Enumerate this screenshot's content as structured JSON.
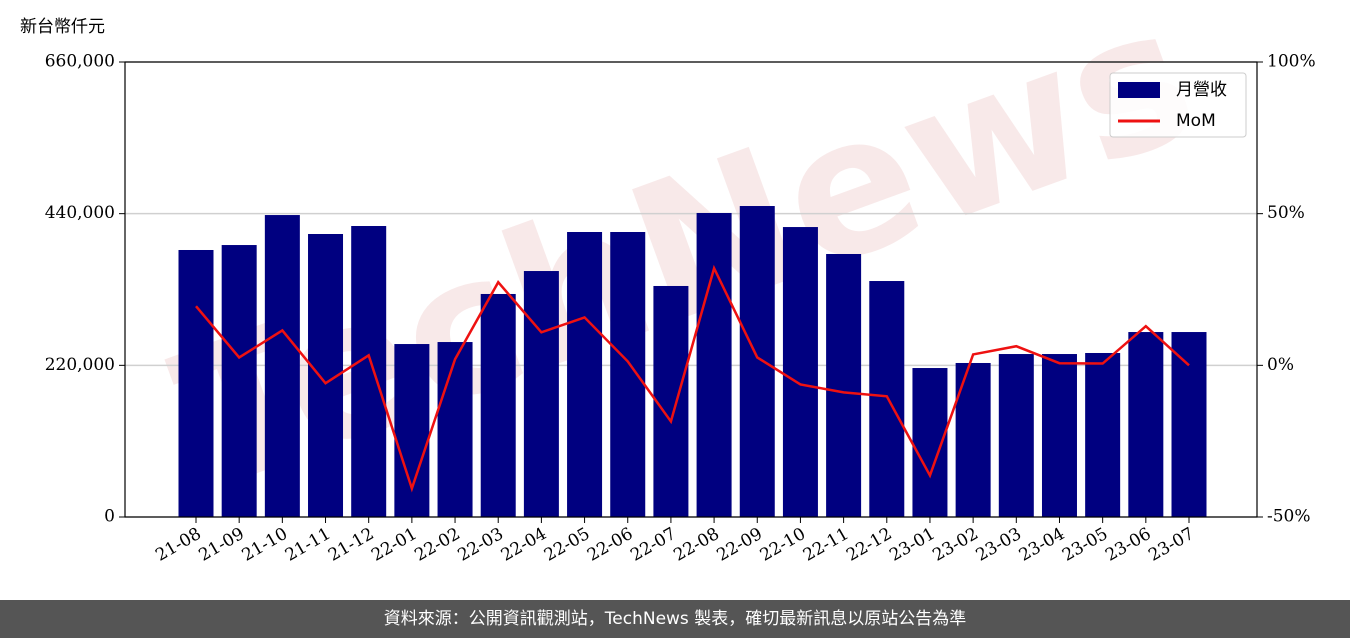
{
  "chart_data": {
    "type": "bar-line",
    "y_axis_label": "新台幣仟元",
    "watermark": "TechNews",
    "categories": [
      "21-08",
      "21-09",
      "21-10",
      "21-11",
      "21-12",
      "22-01",
      "22-02",
      "22-03",
      "22-04",
      "22-05",
      "22-06",
      "22-07",
      "22-08",
      "22-09",
      "22-10",
      "22-11",
      "22-12",
      "23-01",
      "23-02",
      "23-03",
      "23-04",
      "23-05",
      "23-06",
      "23-07"
    ],
    "series": [
      {
        "name": "月營收",
        "type": "bar",
        "color": "#000080",
        "values": [
          387300,
          394500,
          438000,
          410500,
          422100,
          250900,
          253800,
          323500,
          356800,
          413400,
          413400,
          335100,
          441000,
          451100,
          420600,
          381500,
          342300,
          216100,
          223400,
          236400,
          236400,
          237900,
          268300,
          268300
        ]
      },
      {
        "name": "MoM",
        "type": "line",
        "axis": "y2",
        "color": "#ee1111",
        "values": [
          19.5,
          2.6,
          11.5,
          -5.9,
          3.3,
          -40.6,
          2,
          27.4,
          10.9,
          15.8,
          1.3,
          -18.5,
          32,
          2.6,
          -6.3,
          -8.9,
          -10.2,
          -36.3,
          3.6,
          6.3,
          0.7,
          0.6,
          12.9,
          0
        ]
      }
    ],
    "ylim": [
      0,
      660000
    ],
    "yticks": [
      {
        "value": 0,
        "label": "0"
      },
      {
        "value": 220000,
        "label": "220,000"
      },
      {
        "value": 440000,
        "label": "440,000"
      },
      {
        "value": 660000,
        "label": "660,000"
      }
    ],
    "y2lim": [
      -50,
      100
    ],
    "y2ticks": [
      {
        "value": -50,
        "label": "-50%"
      },
      {
        "value": 0,
        "label": "0%"
      },
      {
        "value": 50,
        "label": "50%"
      },
      {
        "value": 100,
        "label": "100%"
      }
    ],
    "grid": true,
    "legend": "upper right"
  },
  "footer": "資料來源：公開資訊觀測站，TechNews 製表，確切最新訊息以原站公告為準"
}
